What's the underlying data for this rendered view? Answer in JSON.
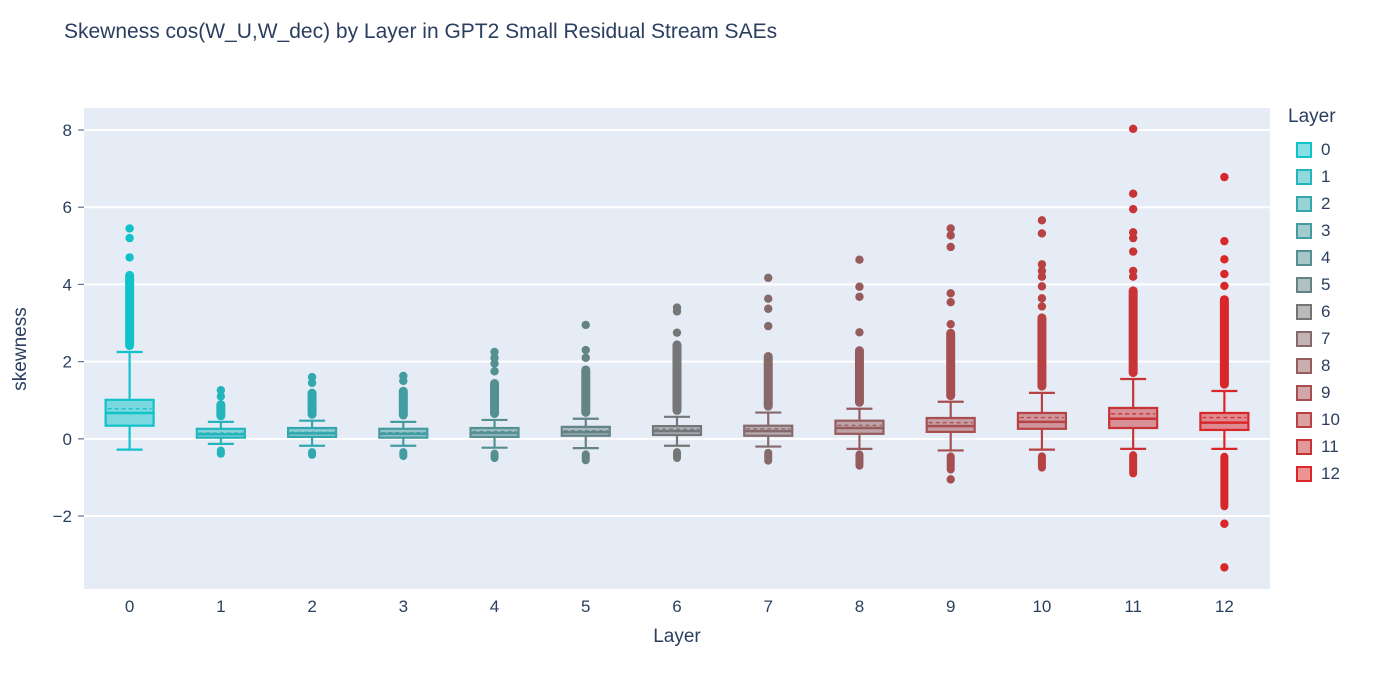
{
  "title": "Skewness cos(W_U,W_dec) by Layer in GPT2 Small Residual Stream SAEs",
  "legend": {
    "title": "Layer",
    "entries": [
      "0",
      "1",
      "2",
      "3",
      "4",
      "5",
      "6",
      "7",
      "8",
      "9",
      "10",
      "11",
      "12"
    ],
    "position": "right"
  },
  "style": {
    "paper_bg": "#ffffff",
    "plot_bg": "#e5ecf6",
    "grid_color": "#ffffff",
    "text_color": "#2a3f5f"
  },
  "chart_data": {
    "type": "box",
    "title": "Skewness cos(W_U,W_dec) by Layer in GPT2 Small Residual Stream SAEs",
    "xlabel": "Layer",
    "ylabel": "skewness",
    "grid": true,
    "legend_position": "right",
    "x_tick_labels": [
      "0",
      "1",
      "2",
      "3",
      "4",
      "5",
      "6",
      "7",
      "8",
      "9",
      "10",
      "11",
      "12"
    ],
    "y_ticks": [
      -2,
      0,
      2,
      4,
      6,
      8
    ],
    "ylim": [
      -3.89,
      8.57
    ],
    "categories": [
      0,
      1,
      2,
      3,
      4,
      5,
      6,
      7,
      8,
      9,
      10,
      11,
      12
    ],
    "series": [
      {
        "layer": 0,
        "color": "#11c2c9",
        "q1": 0.34,
        "median": 0.67,
        "q3": 1.01,
        "mean": 0.78,
        "whisker_low": -0.28,
        "whisker_high": 2.25,
        "outlier_band_high": [
          2.3,
          4.35
        ],
        "outliers_high": [
          4.7,
          5.2,
          5.45
        ],
        "outlier_band_low": null,
        "outliers_low": []
      },
      {
        "layer": 1,
        "color": "#22b5bb",
        "q1": 0.03,
        "median": 0.12,
        "q3": 0.26,
        "mean": 0.15,
        "whisker_low": -0.13,
        "whisker_high": 0.44,
        "outlier_band_high": [
          0.48,
          1.0
        ],
        "outliers_high": [
          1.1,
          1.26
        ],
        "outlier_band_low": [
          -0.2,
          -0.49
        ],
        "outliers_low": []
      },
      {
        "layer": 2,
        "color": "#32a8ae",
        "q1": 0.05,
        "median": 0.14,
        "q3": 0.28,
        "mean": 0.17,
        "whisker_low": -0.18,
        "whisker_high": 0.47,
        "outlier_band_high": [
          0.52,
          1.3
        ],
        "outliers_high": [
          1.45,
          1.6
        ],
        "outlier_band_low": [
          -0.24,
          -0.52
        ],
        "outliers_low": []
      },
      {
        "layer": 3,
        "color": "#439ca0",
        "q1": 0.03,
        "median": 0.13,
        "q3": 0.26,
        "mean": 0.16,
        "whisker_low": -0.18,
        "whisker_high": 0.44,
        "outlier_band_high": [
          0.5,
          1.35
        ],
        "outliers_high": [
          1.5,
          1.63
        ],
        "outlier_band_low": [
          -0.24,
          -0.55
        ],
        "outliers_low": []
      },
      {
        "layer": 4,
        "color": "#548f92",
        "q1": 0.05,
        "median": 0.15,
        "q3": 0.28,
        "mean": 0.19,
        "whisker_low": -0.23,
        "whisker_high": 0.49,
        "outlier_band_high": [
          0.54,
          1.55
        ],
        "outliers_high": [
          1.75,
          1.95,
          2.1,
          2.25
        ],
        "outlier_band_low": [
          -0.28,
          -0.6
        ],
        "outliers_low": []
      },
      {
        "layer": 5,
        "color": "#648385",
        "q1": 0.08,
        "median": 0.17,
        "q3": 0.31,
        "mean": 0.21,
        "whisker_low": -0.24,
        "whisker_high": 0.52,
        "outlier_band_high": [
          0.57,
          1.9
        ],
        "outliers_high": [
          2.1,
          2.3,
          2.95
        ],
        "outlier_band_low": [
          -0.3,
          -0.66
        ],
        "outliers_low": []
      },
      {
        "layer": 6,
        "color": "#757677",
        "q1": 0.1,
        "median": 0.2,
        "q3": 0.33,
        "mean": 0.25,
        "whisker_low": -0.18,
        "whisker_high": 0.57,
        "outlier_band_high": [
          0.62,
          2.55
        ],
        "outliers_high": [
          2.75,
          3.3,
          3.4
        ],
        "outlier_band_low": [
          -0.24,
          -0.6
        ],
        "outliers_low": []
      },
      {
        "layer": 7,
        "color": "#86696a",
        "q1": 0.08,
        "median": 0.2,
        "q3": 0.34,
        "mean": 0.26,
        "whisker_low": -0.2,
        "whisker_high": 0.68,
        "outlier_band_high": [
          0.73,
          2.25
        ],
        "outliers_high": [
          2.92,
          3.37,
          3.63,
          4.17
        ],
        "outlier_band_low": [
          -0.26,
          -0.67
        ],
        "outliers_low": []
      },
      {
        "layer": 8,
        "color": "#965c5d",
        "q1": 0.13,
        "median": 0.28,
        "q3": 0.47,
        "mean": 0.35,
        "whisker_low": -0.26,
        "whisker_high": 0.78,
        "outlier_band_high": [
          0.83,
          2.4
        ],
        "outliers_high": [
          2.76,
          3.68,
          3.94,
          4.64
        ],
        "outlier_band_low": [
          -0.3,
          -0.8
        ],
        "outliers_low": []
      },
      {
        "layer": 9,
        "color": "#a74f50",
        "q1": 0.18,
        "median": 0.33,
        "q3": 0.54,
        "mean": 0.42,
        "whisker_low": -0.3,
        "whisker_high": 0.96,
        "outlier_band_high": [
          1.0,
          2.85
        ],
        "outliers_high": [
          2.97,
          3.54,
          3.77,
          4.97,
          5.27,
          5.45
        ],
        "outlier_band_low": [
          -0.35,
          -0.9
        ],
        "outliers_low": [
          -1.05
        ]
      },
      {
        "layer": 10,
        "color": "#b84243",
        "q1": 0.26,
        "median": 0.44,
        "q3": 0.67,
        "mean": 0.55,
        "whisker_low": -0.28,
        "whisker_high": 1.19,
        "outlier_band_high": [
          1.25,
          3.25
        ],
        "outliers_high": [
          3.43,
          3.64,
          3.95,
          4.2,
          4.35,
          4.52,
          5.32,
          5.66
        ],
        "outlier_band_low": [
          -0.35,
          -0.85
        ],
        "outliers_low": []
      },
      {
        "layer": 11,
        "color": "#c83436",
        "q1": 0.28,
        "median": 0.52,
        "q3": 0.8,
        "mean": 0.65,
        "whisker_low": -0.26,
        "whisker_high": 1.55,
        "outlier_band_high": [
          1.6,
          3.95
        ],
        "outliers_high": [
          4.2,
          4.35,
          4.85,
          5.2,
          5.35,
          5.95,
          6.35,
          8.03
        ],
        "outlier_band_low": [
          -0.32,
          -1.0
        ],
        "outliers_low": []
      },
      {
        "layer": 12,
        "color": "#d92729",
        "q1": 0.23,
        "median": 0.42,
        "q3": 0.67,
        "mean": 0.55,
        "whisker_low": -0.26,
        "whisker_high": 1.24,
        "outlier_band_high": [
          1.3,
          3.72
        ],
        "outliers_high": [
          3.96,
          4.27,
          4.65,
          5.12,
          6.78
        ],
        "outlier_band_low": [
          -0.36,
          -1.85
        ],
        "outliers_low": [
          -2.2,
          -3.33
        ]
      }
    ]
  }
}
